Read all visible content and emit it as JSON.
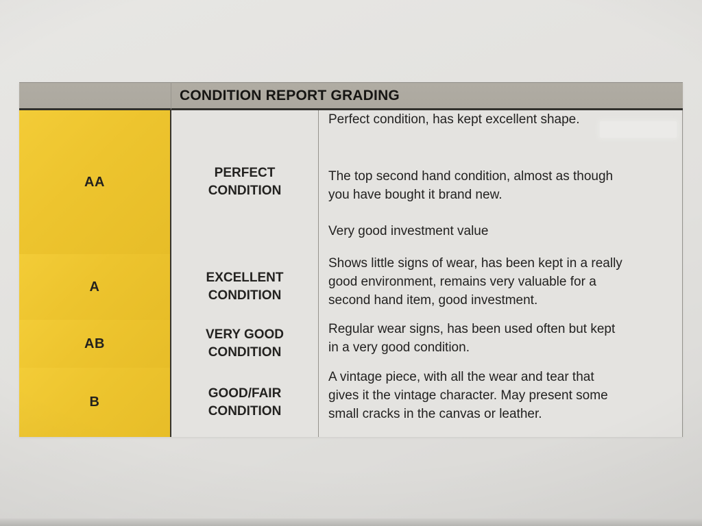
{
  "document": {
    "title": "CONDITION REPORT GRADING",
    "rows": [
      {
        "grade": "AA",
        "condition": "PERFECT\nCONDITION",
        "description": [
          "Perfect condition, has kept excellent shape.",
          "The top second hand condition, almost as though\nyou have bought it brand new.",
          "Very good investment value"
        ]
      },
      {
        "grade": "A",
        "condition": "EXCELLENT\nCONDITION",
        "description": [
          "Shows little signs of wear, has been kept in a really\ngood environment, remains very valuable for a\nsecond hand item, good investment."
        ]
      },
      {
        "grade": "AB",
        "condition": "VERY GOOD\nCONDITION",
        "description": [
          "Regular wear signs, has been used often but kept\nin a very good condition."
        ]
      },
      {
        "grade": "B",
        "condition": "GOOD/FAIR\nCONDITION",
        "description": [
          "A vintage piece, with all the wear and tear that\ngives it the vintage character. May present some\nsmall cracks in the canvas or leather."
        ]
      }
    ],
    "colors": {
      "grade_column": "#edc42e",
      "header_band": "#aca89f",
      "paper": "#e5e4e1",
      "ink": "#1e1d1b"
    }
  }
}
